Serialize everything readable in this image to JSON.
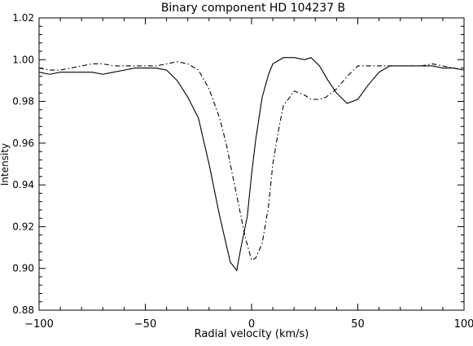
{
  "chart_data": {
    "type": "line",
    "title": "Binary component HD 104237 B",
    "xlabel": "Radial velocity (km/s)",
    "ylabel": "Intensity",
    "xlim": [
      -100,
      100
    ],
    "ylim": [
      0.88,
      1.02
    ],
    "xticks": [
      -100,
      -50,
      0,
      50,
      100
    ],
    "xtick_labels": [
      "−100",
      "−50",
      "0",
      "50",
      "100"
    ],
    "yticks": [
      0.88,
      0.9,
      0.92,
      0.94,
      0.96,
      0.98,
      1.0,
      1.02
    ],
    "ytick_labels": [
      "0.88",
      "0.90",
      "0.92",
      "0.94",
      "0.96",
      "0.98",
      "1.00",
      "1.02"
    ],
    "grid": false,
    "legend": "none",
    "series": [
      {
        "style": "solid",
        "x": [
          -100,
          -95,
          -90,
          -85,
          -80,
          -75,
          -70,
          -65,
          -60,
          -55,
          -50,
          -45,
          -40,
          -35,
          -30,
          -25,
          -20,
          -15,
          -10,
          -7,
          -5,
          -2,
          0,
          2,
          5,
          8,
          10,
          15,
          20,
          25,
          28,
          32,
          36,
          40,
          45,
          50,
          55,
          60,
          65,
          70,
          75,
          80,
          85,
          90,
          95,
          100
        ],
        "y": [
          0.994,
          0.993,
          0.994,
          0.994,
          0.994,
          0.994,
          0.993,
          0.994,
          0.995,
          0.996,
          0.996,
          0.996,
          0.995,
          0.99,
          0.982,
          0.972,
          0.95,
          0.925,
          0.903,
          0.899,
          0.91,
          0.925,
          0.945,
          0.962,
          0.982,
          0.993,
          0.998,
          1.001,
          1.001,
          1.0,
          1.001,
          0.997,
          0.99,
          0.984,
          0.979,
          0.981,
          0.988,
          0.994,
          0.997,
          0.997,
          0.997,
          0.997,
          0.997,
          0.996,
          0.996,
          0.995
        ]
      },
      {
        "style": "dash-dot",
        "x": [
          -100,
          -95,
          -90,
          -85,
          -80,
          -75,
          -70,
          -65,
          -60,
          -55,
          -50,
          -45,
          -40,
          -35,
          -30,
          -25,
          -20,
          -15,
          -12,
          -10,
          -8,
          -5,
          -3,
          0,
          2,
          5,
          8,
          10,
          13,
          15,
          18,
          20,
          25,
          28,
          32,
          35,
          40,
          45,
          50,
          55,
          60,
          65,
          70,
          75,
          80,
          85,
          90,
          95,
          100
        ],
        "y": [
          0.996,
          0.995,
          0.995,
          0.996,
          0.997,
          0.998,
          0.998,
          0.997,
          0.997,
          0.997,
          0.997,
          0.997,
          0.998,
          0.999,
          0.998,
          0.995,
          0.986,
          0.972,
          0.96,
          0.95,
          0.94,
          0.925,
          0.915,
          0.904,
          0.905,
          0.912,
          0.93,
          0.95,
          0.968,
          0.978,
          0.982,
          0.985,
          0.983,
          0.981,
          0.981,
          0.982,
          0.986,
          0.992,
          0.997,
          0.997,
          0.997,
          0.997,
          0.997,
          0.997,
          0.997,
          0.998,
          0.997,
          0.996,
          0.995
        ]
      }
    ]
  }
}
